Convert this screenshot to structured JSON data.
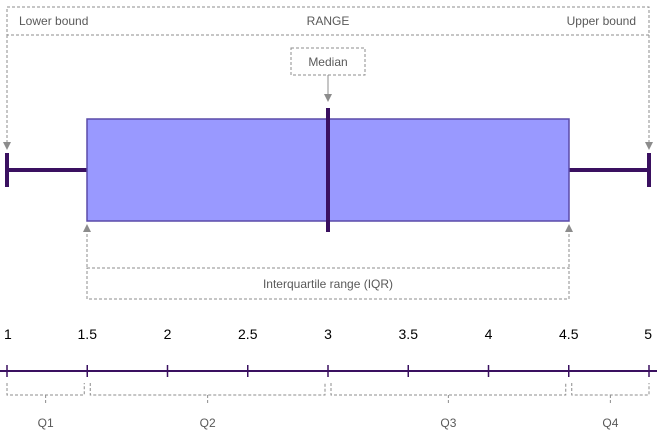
{
  "labels": {
    "lower_bound": "Lower bound",
    "range": "RANGE",
    "upper_bound": "Upper bound",
    "median": "Median",
    "iqr": "Interquartile range (IQR)"
  },
  "axis": {
    "ticks": [
      "1",
      "1.5",
      "2",
      "2.5",
      "3",
      "3.5",
      "4",
      "4.5",
      "5"
    ]
  },
  "quartiles": [
    "Q1",
    "Q2",
    "Q3",
    "Q4"
  ],
  "colors": {
    "box_fill": "#9999ff",
    "box_stroke": "#5a4aa8",
    "whisker": "#3a1060",
    "axis": "#3a1060",
    "dashed": "#8c8c8c",
    "label_text": "#595959"
  }
}
